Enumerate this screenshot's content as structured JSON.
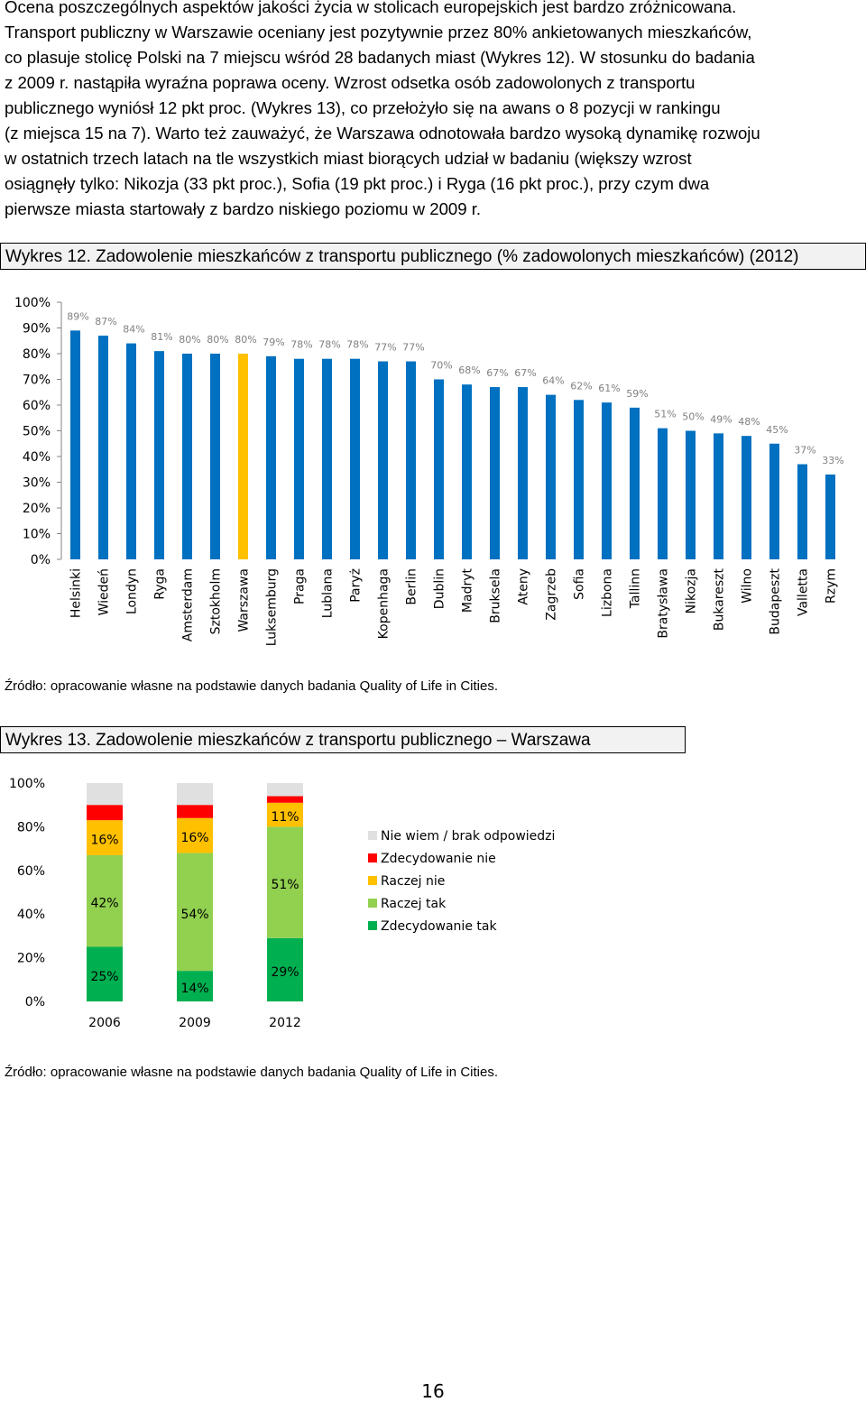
{
  "paragraph": {
    "l1": "Ocena poszczególnych aspektów jakości życia w stolicach europejskich jest bardzo zróżnicowana.",
    "l2": "Transport publiczny w Warszawie oceniany jest pozytywnie przez 80% ankietowanych mieszkańców,",
    "l3": "co plasuje stolicę Polski na 7 miejscu wśród 28 badanych miast (Wykres 12). W stosunku do badania",
    "l4": "z 2009 r. nastąpiła wyraźna poprawa oceny. Wzrost odsetka osób zadowolonych z transportu",
    "l5": "publicznego wyniósł 12 pkt proc. (Wykres 13), co przełożyło się na awans o 8 pozycji w rankingu",
    "l6": "(z miejsca 15 na 7). Warto też zauważyć, że Warszawa odnotowała bardzo wysoką dynamikę rozwoju",
    "l7": "w ostatnich trzech latach na tle wszystkich miast biorących udział w badaniu (większy wzrost",
    "l8": "osiągnęły tylko: Nikozja (33 pkt proc.), Sofia (19 pkt proc.) i Ryga (16 pkt proc.), przy czym dwa",
    "l9": "pierwsze miasta startowały z bardzo niskiego poziomu w 2009 r."
  },
  "figure12": {
    "title": "Wykres 12. Zadowolenie mieszkańców z transportu publicznego (% zadowolonych mieszkańców) (2012)",
    "source": "Źródło: opracowanie własne na podstawie danych badania Quality of Life in Cities."
  },
  "figure13": {
    "title": "Wykres 13. Zadowolenie mieszkańców z transportu publicznego – Warszawa",
    "source": "Źródło: opracowanie własne na podstawie danych badania Quality of Life in Cities."
  },
  "page_number": "16",
  "chart_data": [
    {
      "type": "bar",
      "categories": [
        "Helsinki",
        "Wiedeń",
        "Londyn",
        "Ryga",
        "Amsterdam",
        "Sztokholm",
        "Warszawa",
        "Luksemburg",
        "Praga",
        "Lublana",
        "Paryż",
        "Kopenhaga",
        "Berlin",
        "Dublin",
        "Madryt",
        "Bruksela",
        "Ateny",
        "Zagrzeb",
        "Sofia",
        "Lizbona",
        "Tallinn",
        "Bratysława",
        "Nikozja",
        "Bukareszt",
        "Wilno",
        "Budapeszt",
        "Valletta",
        "Rzym"
      ],
      "values": [
        89,
        87,
        84,
        81,
        80,
        80,
        80,
        79,
        78,
        78,
        78,
        77,
        77,
        70,
        68,
        67,
        67,
        64,
        62,
        61,
        59,
        51,
        50,
        49,
        48,
        45,
        37,
        33
      ],
      "ylim": [
        0,
        100
      ],
      "yticks": [
        "0%",
        "10%",
        "20%",
        "30%",
        "40%",
        "50%",
        "60%",
        "70%",
        "80%",
        "90%",
        "100%"
      ],
      "colors": {
        "default": "#0070c0",
        "highlight": "#ffc000"
      },
      "highlight": "Warszawa",
      "grid": false
    },
    {
      "type": "bar",
      "stacked": true,
      "categories": [
        "2006",
        "2009",
        "2012"
      ],
      "series": [
        {
          "name": "Zdecydowanie tak",
          "values": [
            25,
            14,
            29
          ],
          "color": "#00b050"
        },
        {
          "name": "Raczej tak",
          "values": [
            42,
            54,
            51
          ],
          "color": "#92d050"
        },
        {
          "name": "Raczej nie",
          "values": [
            16,
            16,
            11
          ],
          "color": "#ffc000"
        },
        {
          "name": "Zdecydowanie nie",
          "values": [
            7,
            6,
            3
          ],
          "color": "#ff0000"
        },
        {
          "name": "Nie wiem / brak odpowiedzi",
          "values": [
            10,
            10,
            6
          ],
          "color": "#e0e0e0"
        }
      ],
      "labeled": {
        "Zdecydowanie tak": true,
        "Raczej tak": true,
        "Raczej nie": true,
        "Zdecydowanie nie": false,
        "Nie wiem / brak odpowiedzi": false
      },
      "ylim": [
        0,
        100
      ],
      "yticks": [
        "0%",
        "20%",
        "40%",
        "60%",
        "80%",
        "100%"
      ],
      "legend_position": "right",
      "grid": false
    }
  ]
}
